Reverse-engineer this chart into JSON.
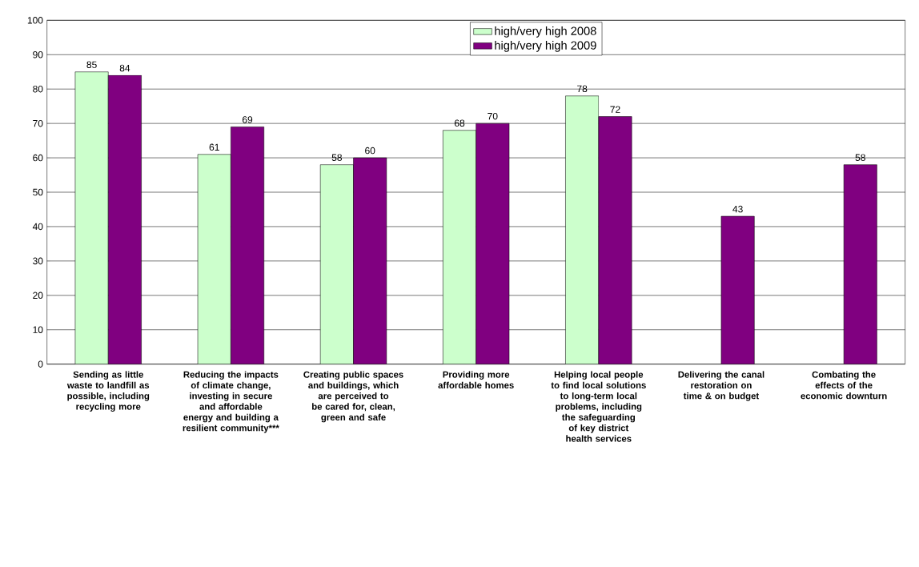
{
  "chart_data": {
    "type": "bar",
    "categories": [
      "Sending as little waste to landfill as possible, including recycling more",
      "Reducing the impacts of climate change, investing in secure and affordable energy and building a resilient community***",
      "Creating public spaces and buildings, which are perceived to be cared for, clean, green and safe",
      "Providing more affordable homes",
      "Helping local people to find local solutions to long-term local problems, including the safeguarding of key district health services",
      "Delivering the canal restoration on time & on budget",
      "Combating the effects of the economic downturn"
    ],
    "series": [
      {
        "name": "high/very high 2008",
        "color": "#ccffcc",
        "values": [
          85,
          61,
          58,
          68,
          78,
          null,
          null
        ]
      },
      {
        "name": "high/very high 2009",
        "color": "#800080",
        "values": [
          84,
          69,
          60,
          70,
          72,
          43,
          58
        ]
      }
    ],
    "ylim": [
      0,
      100
    ],
    "yticks": [
      0,
      10,
      20,
      30,
      40,
      50,
      60,
      70,
      80,
      90,
      100
    ],
    "grid": "y",
    "legend": "top",
    "data_labels": true
  }
}
